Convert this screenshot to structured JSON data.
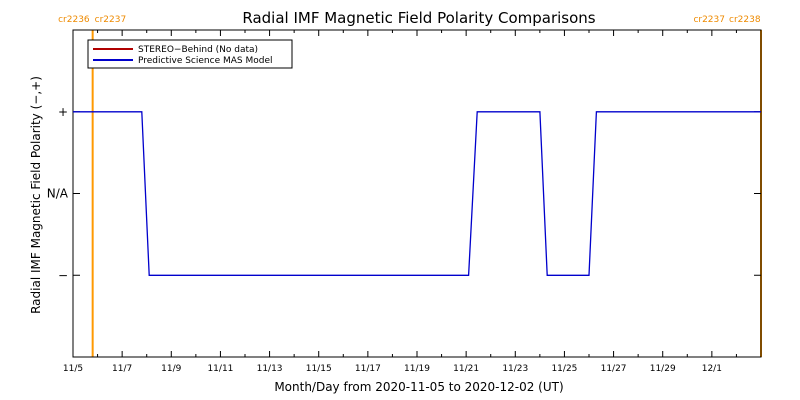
{
  "chart_data": {
    "type": "line",
    "title": "Radial IMF Magnetic Field Polarity Comparisons",
    "xlabel": "Month/Day from 2020-11-05 to 2020-12-02 (UT)",
    "ylabel": "Radial IMF Magnetic Field Polarity (−,+)",
    "x_range_days": [
      0,
      28
    ],
    "y_range": [
      -2,
      2
    ],
    "x_ticks": [
      {
        "day": 0,
        "label": "11/5"
      },
      {
        "day": 2,
        "label": "11/7"
      },
      {
        "day": 4,
        "label": "11/9"
      },
      {
        "day": 6,
        "label": "11/11"
      },
      {
        "day": 8,
        "label": "11/13"
      },
      {
        "day": 10,
        "label": "11/15"
      },
      {
        "day": 12,
        "label": "11/17"
      },
      {
        "day": 14,
        "label": "11/19"
      },
      {
        "day": 16,
        "label": "11/21"
      },
      {
        "day": 18,
        "label": "11/23"
      },
      {
        "day": 20,
        "label": "11/25"
      },
      {
        "day": 22,
        "label": "11/27"
      },
      {
        "day": 24,
        "label": "11/29"
      },
      {
        "day": 26,
        "label": "12/1"
      }
    ],
    "y_levels": [
      {
        "value": 1,
        "label": "+"
      },
      {
        "value": 0,
        "label": "N/A"
      },
      {
        "value": -1,
        "label": "−"
      }
    ],
    "carrington_markers": [
      {
        "day": 0.8,
        "label_left": "cr2236",
        "label_right": "cr2237",
        "color": "#ff9900"
      },
      {
        "day": 28,
        "label_left": "cr2237",
        "label_right": "cr2238",
        "color": "#ff9900"
      }
    ],
    "legend": {
      "placement": "top-left",
      "entries": [
        {
          "name": "STEREO−Behind (No data)",
          "color": "#b00000"
        },
        {
          "name": "Predictive Science MAS Model",
          "color": "#0000cc"
        }
      ]
    },
    "series": [
      {
        "name": "Predictive Science MAS Model",
        "color": "#0000cc",
        "points": [
          [
            0,
            1
          ],
          [
            2.8,
            1
          ],
          [
            3.1,
            -1
          ],
          [
            16.1,
            -1
          ],
          [
            16.45,
            1
          ],
          [
            19.0,
            1
          ],
          [
            19.3,
            -1
          ],
          [
            21.0,
            -1
          ],
          [
            21.3,
            1
          ],
          [
            28,
            1
          ]
        ]
      }
    ]
  }
}
